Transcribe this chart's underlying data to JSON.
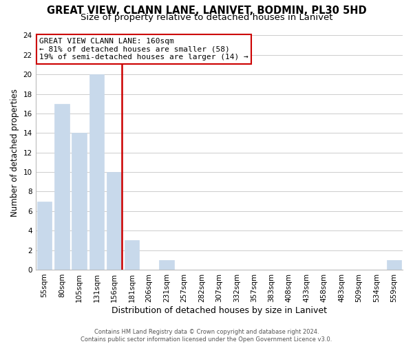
{
  "title": "GREAT VIEW, CLANN LANE, LANIVET, BODMIN, PL30 5HD",
  "subtitle": "Size of property relative to detached houses in Lanivet",
  "xlabel": "Distribution of detached houses by size in Lanivet",
  "ylabel": "Number of detached properties",
  "bar_labels": [
    "55sqm",
    "80sqm",
    "105sqm",
    "131sqm",
    "156sqm",
    "181sqm",
    "206sqm",
    "231sqm",
    "257sqm",
    "282sqm",
    "307sqm",
    "332sqm",
    "357sqm",
    "383sqm",
    "408sqm",
    "433sqm",
    "458sqm",
    "483sqm",
    "509sqm",
    "534sqm",
    "559sqm"
  ],
  "bar_values": [
    7,
    17,
    14,
    20,
    10,
    3,
    0,
    1,
    0,
    0,
    0,
    0,
    0,
    0,
    0,
    0,
    0,
    0,
    0,
    0,
    1
  ],
  "bar_color": "#c8d9eb",
  "red_line_color": "#cc0000",
  "red_line_bar_index": 4,
  "ylim": [
    0,
    24
  ],
  "yticks": [
    0,
    2,
    4,
    6,
    8,
    10,
    12,
    14,
    16,
    18,
    20,
    22,
    24
  ],
  "annotation_title": "GREAT VIEW CLANN LANE: 160sqm",
  "annotation_line1": "← 81% of detached houses are smaller (58)",
  "annotation_line2": "19% of semi-detached houses are larger (14) →",
  "annotation_box_color": "#ffffff",
  "annotation_box_edge": "#cc0000",
  "footer1": "Contains HM Land Registry data © Crown copyright and database right 2024.",
  "footer2": "Contains public sector information licensed under the Open Government Licence v3.0.",
  "bg_color": "#ffffff",
  "grid_color": "#cccccc",
  "title_fontsize": 10.5,
  "subtitle_fontsize": 9.5,
  "xlabel_fontsize": 9,
  "ylabel_fontsize": 8.5,
  "tick_fontsize": 7.5,
  "footer_fontsize": 6.0,
  "ann_fontsize": 8.0
}
